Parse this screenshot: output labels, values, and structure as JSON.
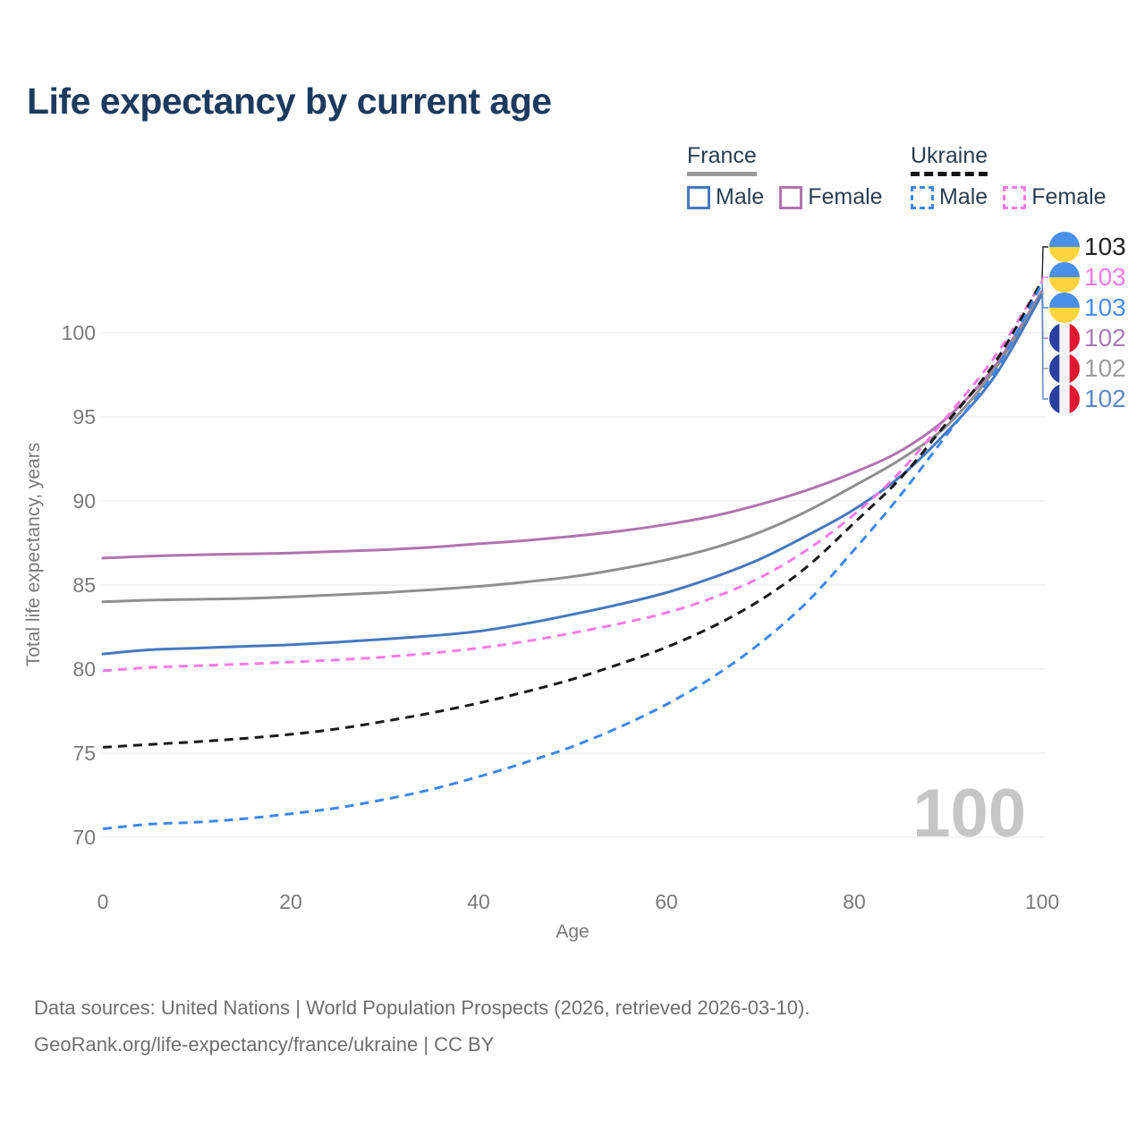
{
  "title": "Life expectancy by current age",
  "legend": {
    "groups": [
      {
        "name": "France",
        "underline": "solid",
        "underline_color": "#9a9a9a",
        "items": [
          {
            "label": "Male",
            "color": "#4678BE",
            "box": "solid"
          },
          {
            "label": "Female",
            "color": "#B074AE",
            "box": "solid"
          }
        ]
      },
      {
        "name": "Ukraine",
        "underline": "dashed",
        "underline_color": "#141414",
        "items": [
          {
            "label": "Male",
            "color": "#3E87F0",
            "box": "dashed"
          },
          {
            "label": "Female",
            "color": "#FF7BE5",
            "box": "dashed"
          }
        ]
      }
    ]
  },
  "watermark": "100",
  "footer": {
    "line1": "Data sources: United Nations | World Population Prospects (2026, retrieved 2026-03-10).",
    "line2": "GeoRank.org/life-expectancy/france/ukraine | CC BY"
  },
  "flags": {
    "ukraine": {
      "top": "#4a90e8",
      "bottom": "#ffd43d"
    },
    "france": {
      "left": "#2a3f9f",
      "mid": "#f4f4f4",
      "right": "#e11731"
    }
  },
  "chart_data": {
    "type": "line",
    "title": "Life expectancy by current age",
    "xlabel": "Age",
    "ylabel": "Total life expectancy, years",
    "xlim": [
      0,
      100
    ],
    "ylim": [
      68.5,
      104.5
    ],
    "xticks": [
      0,
      20,
      40,
      60,
      80,
      100
    ],
    "yticks": [
      70,
      75,
      80,
      85,
      90,
      95,
      100
    ],
    "grid": "horizontal",
    "legend_position": "top-right",
    "x": [
      0,
      5,
      10,
      15,
      20,
      25,
      30,
      35,
      40,
      45,
      50,
      55,
      60,
      65,
      70,
      75,
      80,
      85,
      90,
      95,
      100
    ],
    "series": [
      {
        "name": "France Female",
        "country": "France",
        "sex": "Female",
        "color": "#B074AE",
        "dash": "solid",
        "values": [
          86.6,
          86.72,
          86.8,
          86.85,
          86.9,
          87.0,
          87.1,
          87.25,
          87.45,
          87.65,
          87.9,
          88.2,
          88.6,
          89.1,
          89.8,
          90.65,
          91.7,
          93.0,
          95.0,
          98.05,
          102.5
        ],
        "end_label": "102",
        "end_label_color": "#A87EB8",
        "flag": "france"
      },
      {
        "name": "France Both sexes",
        "country": "France",
        "sex": "Both",
        "color": "#8F8F8F",
        "dash": "solid",
        "values": [
          84.0,
          84.1,
          84.15,
          84.2,
          84.3,
          84.42,
          84.55,
          84.72,
          84.92,
          85.18,
          85.5,
          85.95,
          86.5,
          87.2,
          88.15,
          89.4,
          90.9,
          92.5,
          94.55,
          97.85,
          102.4
        ],
        "end_label": "102",
        "end_label_color": "#9C9C9C",
        "flag": "france"
      },
      {
        "name": "France Male",
        "country": "France",
        "sex": "Male",
        "color": "#4678BE",
        "dash": "solid",
        "values": [
          80.9,
          81.15,
          81.25,
          81.35,
          81.45,
          81.6,
          81.78,
          81.98,
          82.25,
          82.7,
          83.25,
          83.85,
          84.55,
          85.45,
          86.55,
          87.95,
          89.5,
          91.5,
          94.2,
          97.45,
          102.3
        ],
        "end_label": "102",
        "end_label_color": "#5E87C8",
        "flag": "france"
      },
      {
        "name": "Ukraine Female",
        "country": "Ukraine",
        "sex": "Female",
        "color": "#FF7BE5",
        "dash": "dashed",
        "values": [
          79.9,
          80.1,
          80.2,
          80.3,
          80.42,
          80.55,
          80.72,
          80.95,
          81.25,
          81.65,
          82.15,
          82.7,
          83.35,
          84.25,
          85.45,
          87.1,
          89.2,
          91.8,
          95.1,
          98.6,
          103.05
        ],
        "end_label": "103",
        "end_label_color": "#FF7BE5",
        "flag": "ukraine"
      },
      {
        "name": "Ukraine Both sexes",
        "country": "Ukraine",
        "sex": "Both",
        "color": "#1A1A1A",
        "dash": "dashed",
        "values": [
          75.35,
          75.52,
          75.68,
          75.88,
          76.12,
          76.45,
          76.9,
          77.4,
          77.98,
          78.65,
          79.4,
          80.3,
          81.3,
          82.55,
          84.1,
          86.1,
          88.7,
          91.4,
          94.75,
          98.25,
          103.1
        ],
        "end_label": "103",
        "end_label_color": "#222222",
        "flag": "ukraine"
      },
      {
        "name": "Ukraine Male",
        "country": "Ukraine",
        "sex": "Male",
        "color": "#3E87F0",
        "dash": "dashed",
        "values": [
          70.5,
          70.78,
          70.9,
          71.1,
          71.4,
          71.75,
          72.25,
          72.85,
          73.6,
          74.45,
          75.4,
          76.55,
          77.9,
          79.55,
          81.55,
          84.0,
          87.1,
          90.4,
          94.05,
          97.7,
          102.95
        ],
        "end_label": "103",
        "end_label_color": "#4A8CF5",
        "flag": "ukraine"
      }
    ]
  }
}
